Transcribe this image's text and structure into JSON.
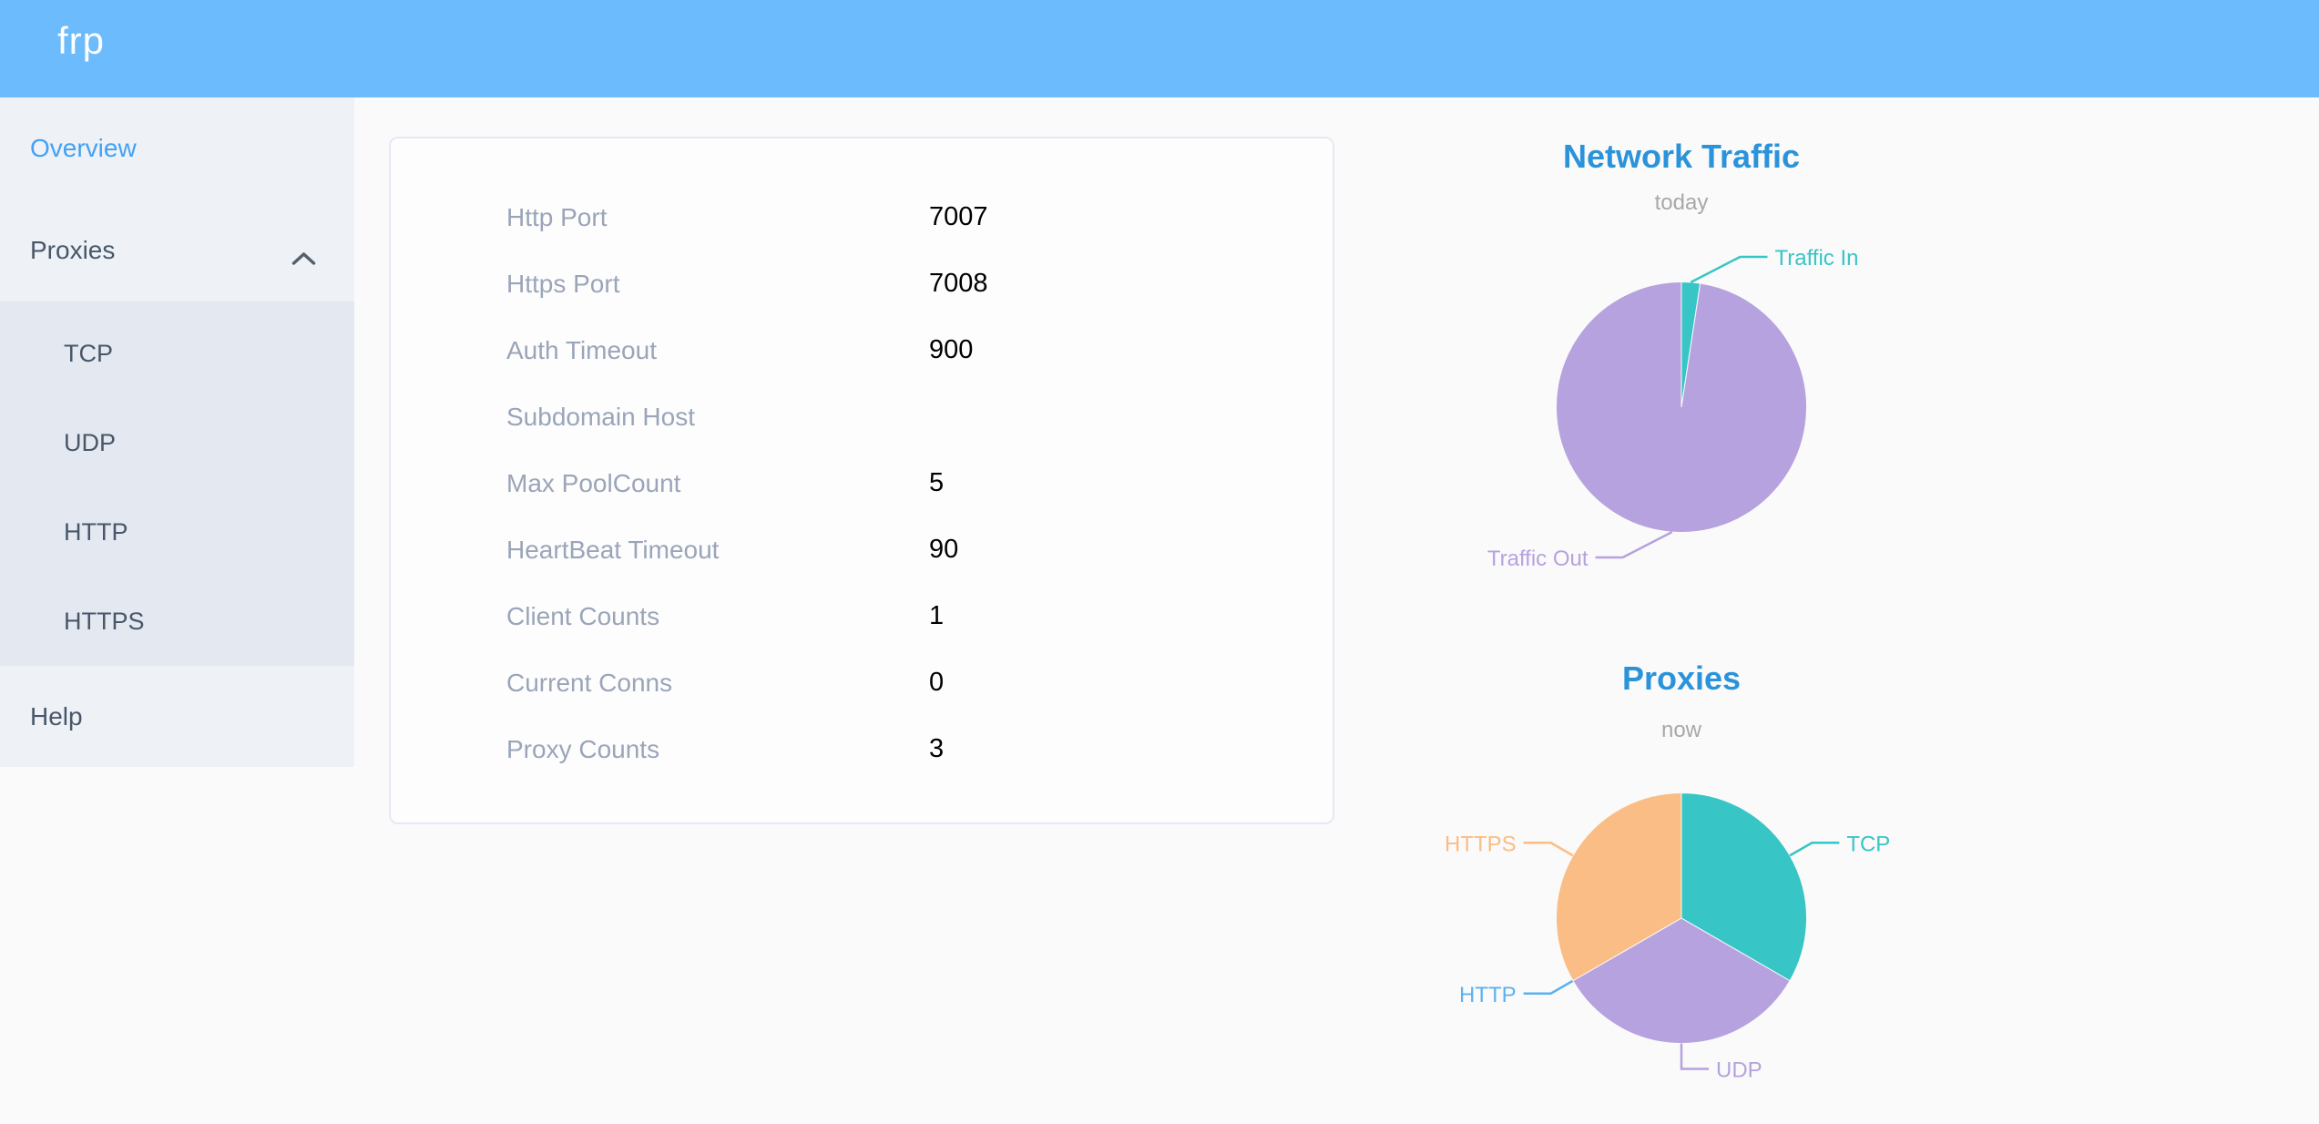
{
  "header": {
    "logo": "frp"
  },
  "sidebar": {
    "items": [
      {
        "label": "Overview",
        "active": true
      },
      {
        "label": "Proxies",
        "expanded": true,
        "children": [
          {
            "label": "TCP"
          },
          {
            "label": "UDP"
          },
          {
            "label": "HTTP"
          },
          {
            "label": "HTTPS"
          }
        ]
      },
      {
        "label": "Help"
      }
    ]
  },
  "overview_card": {
    "rows": [
      {
        "label": "Http Port",
        "value": "7007"
      },
      {
        "label": "Https Port",
        "value": "7008"
      },
      {
        "label": "Auth Timeout",
        "value": "900"
      },
      {
        "label": "Subdomain Host",
        "value": ""
      },
      {
        "label": "Max PoolCount",
        "value": "5"
      },
      {
        "label": "HeartBeat Timeout",
        "value": "90"
      },
      {
        "label": "Client Counts",
        "value": "1"
      },
      {
        "label": "Current Conns",
        "value": "0"
      },
      {
        "label": "Proxy Counts",
        "value": "3"
      }
    ]
  },
  "chart_data": [
    {
      "type": "pie",
      "title": "Network Traffic",
      "subtitle": "today",
      "legend_position": "callout-labels",
      "value_unit": "percent-of-circle",
      "slices": [
        {
          "label": "Traffic In",
          "value": 2.4,
          "color": "#38c5c5"
        },
        {
          "label": "Traffic Out",
          "value": 97.6,
          "color": "#b6a2de"
        }
      ]
    },
    {
      "type": "pie",
      "title": "Proxies",
      "subtitle": "now",
      "legend_position": "callout-labels",
      "value_unit": "proxy-count",
      "slices": [
        {
          "label": "TCP",
          "value": 1,
          "color": "#38c5c5"
        },
        {
          "label": "UDP",
          "value": 1,
          "color": "#b6a2de"
        },
        {
          "label": "HTTP",
          "value": 0,
          "color": "#5ab1ef"
        },
        {
          "label": "HTTPS",
          "value": 1,
          "color": "#fabd85"
        }
      ]
    }
  ],
  "colors": {
    "header_blue": "#6cbbfc",
    "active_item_blue": "#42a1f5",
    "chart_title_blue": "#2b93da",
    "sidebar_text": "#48576a",
    "card_label_gray": "#9aa5b8"
  }
}
